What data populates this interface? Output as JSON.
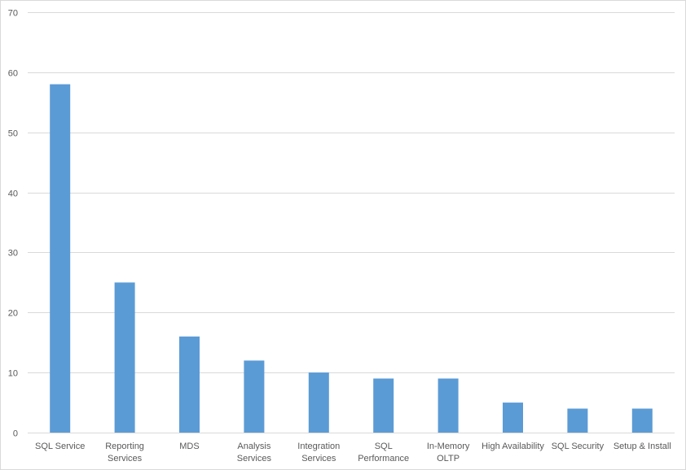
{
  "chart_data": {
    "type": "bar",
    "title": "",
    "xlabel": "",
    "ylabel": "",
    "categories": [
      "SQL Service",
      "Reporting Services",
      "MDS",
      "Analysis Services",
      "Integration Services",
      "SQL Performance",
      "In-Memory OLTP",
      "High Availability",
      "SQL Security",
      "Setup & Install"
    ],
    "category_label_lines": [
      [
        "SQL Service"
      ],
      [
        "Reporting",
        "Services"
      ],
      [
        "MDS"
      ],
      [
        "Analysis",
        "Services"
      ],
      [
        "Integration",
        "Services"
      ],
      [
        "SQL",
        "Performance"
      ],
      [
        "In-Memory",
        "OLTP"
      ],
      [
        "High Availability"
      ],
      [
        "SQL Security"
      ],
      [
        "Setup & Install"
      ]
    ],
    "values": [
      58,
      25,
      16,
      12,
      10,
      9,
      9,
      5,
      4,
      4
    ],
    "ylim": [
      0,
      70
    ],
    "yticks": [
      0,
      10,
      20,
      30,
      40,
      50,
      60,
      70
    ],
    "grid": true,
    "legend": "none",
    "bar_color": "#5b9bd5",
    "grid_color": "#d9d9d9",
    "axis_color": "#d9d9d9",
    "text_color": "#595959"
  }
}
